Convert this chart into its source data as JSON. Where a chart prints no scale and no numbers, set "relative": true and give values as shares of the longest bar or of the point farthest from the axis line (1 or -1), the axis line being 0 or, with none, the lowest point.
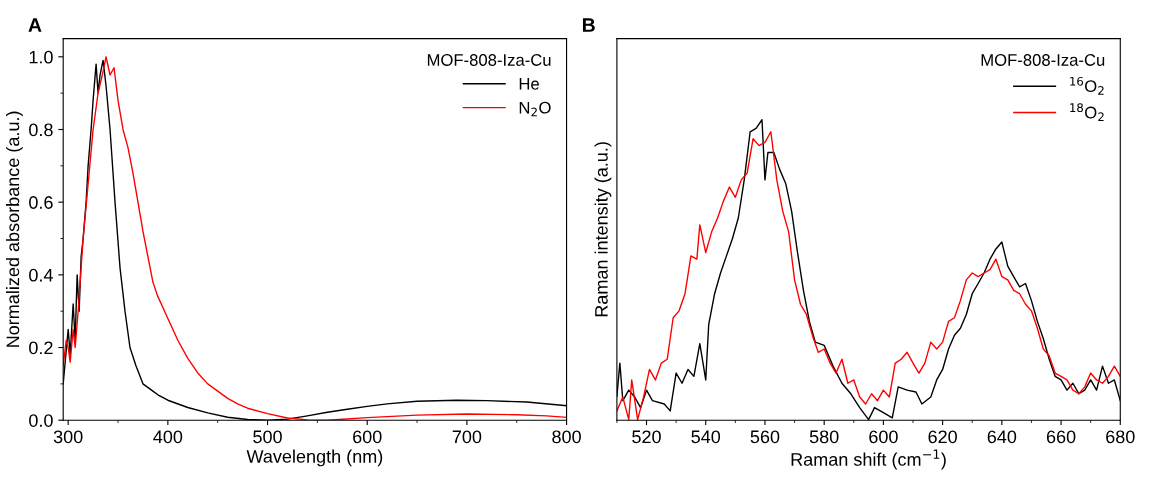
{
  "chart_data": [
    {
      "type": "line",
      "annotations": [
        "A"
      ],
      "xlabel": "Wavelength (nm)",
      "ylabel": "Normalized absorbance (a.u.)",
      "legend_title": "MOF-808-Iza-Cu",
      "legend": "top right",
      "grid": false,
      "xlim": [
        295,
        800
      ],
      "xticks": [
        300,
        400,
        500,
        600,
        700,
        800
      ],
      "ylim": [
        0,
        1.05
      ],
      "yticks": [
        {
          "value": 0,
          "label": "0.0"
        },
        0.2,
        0.4,
        0.6,
        0.8,
        {
          "value": 1,
          "label": "1.0"
        }
      ],
      "series": [
        {
          "name": "He",
          "color": "#000000",
          "x": [
            295,
            300,
            302,
            305,
            307,
            309,
            311,
            313,
            315,
            318,
            320,
            323,
            325,
            328,
            330,
            332,
            335,
            338,
            342,
            347,
            352,
            357,
            362,
            368,
            375,
            385,
            390,
            400,
            420,
            440,
            460,
            480,
            500,
            520,
            540,
            560,
            580,
            600,
            620,
            650,
            690,
            720,
            760,
            800
          ],
          "values": [
            0.1,
            0.25,
            0.18,
            0.32,
            0.22,
            0.4,
            0.3,
            0.45,
            0.5,
            0.6,
            0.7,
            0.8,
            0.88,
            0.98,
            0.9,
            0.95,
            0.99,
            0.92,
            0.8,
            0.6,
            0.42,
            0.3,
            0.2,
            0.15,
            0.1,
            0.08,
            0.07,
            0.055,
            0.035,
            0.02,
            0.008,
            0.002,
            0,
            0.003,
            0.012,
            0.022,
            0.03,
            0.038,
            0.045,
            0.052,
            0.055,
            0.054,
            0.05,
            0.04
          ]
        },
        {
          "name": "N$_{2}$O",
          "color": "#ff0000",
          "x": [
            295,
            298,
            300,
            302,
            305,
            307,
            310,
            315,
            320,
            325,
            330,
            335,
            338,
            342,
            346,
            350,
            355,
            360,
            365,
            370,
            375,
            380,
            385,
            390,
            395,
            400,
            410,
            420,
            430,
            440,
            450,
            460,
            470,
            480,
            500,
            520,
            540,
            560,
            600,
            650,
            700,
            750,
            780,
            800
          ],
          "values": [
            0.15,
            0.22,
            0.2,
            0.16,
            0.25,
            0.2,
            0.3,
            0.5,
            0.65,
            0.8,
            0.9,
            0.96,
            1.0,
            0.95,
            0.97,
            0.88,
            0.8,
            0.75,
            0.68,
            0.6,
            0.52,
            0.45,
            0.38,
            0.34,
            0.31,
            0.28,
            0.22,
            0.17,
            0.13,
            0.1,
            0.08,
            0.06,
            0.045,
            0.033,
            0.018,
            0.006,
            0.001,
            0,
            0.007,
            0.014,
            0.017,
            0.015,
            0.012,
            0.008
          ]
        }
      ]
    },
    {
      "type": "line",
      "annotations": [
        "B"
      ],
      "xlabel": "Raman shift (cm$^{−1}$)",
      "ylabel": "Raman intensity (a.u.)",
      "legend_title": "MOF-808-Iza-Cu",
      "legend": "top right",
      "grid": false,
      "relative": true,
      "xlim": [
        510,
        680
      ],
      "xticks": [
        520,
        540,
        560,
        580,
        600,
        620,
        640,
        660,
        680
      ],
      "series": [
        {
          "name": "$^{16}$O$_{2}$",
          "color": "#000000",
          "x": [
            510,
            511,
            512,
            514,
            516,
            518,
            520,
            522,
            526,
            528,
            530,
            532,
            534,
            536,
            538,
            540,
            541,
            543,
            545,
            547,
            549,
            551,
            553,
            555,
            557,
            559,
            560,
            561,
            563,
            565,
            567,
            569,
            571,
            573,
            575,
            577,
            580,
            583,
            586,
            589,
            592,
            595,
            597,
            600,
            603,
            605,
            608,
            611,
            613,
            616,
            618,
            620,
            622,
            624,
            626,
            628,
            630,
            632,
            634,
            636,
            638,
            640,
            642,
            644,
            646,
            648,
            650,
            652,
            654,
            656,
            658,
            660,
            662,
            664,
            666,
            668,
            670,
            672,
            674,
            676,
            678,
            680
          ],
          "values": [
            0.08,
            0.19,
            0.065,
            0.1,
            0.077,
            0.042,
            0.1,
            0.065,
            0.054,
            0.031,
            0.157,
            0.123,
            0.169,
            0.146,
            0.255,
            0.134,
            0.318,
            0.421,
            0.49,
            0.547,
            0.604,
            0.673,
            0.8,
            0.96,
            0.971,
            1.0,
            0.8,
            0.891,
            0.891,
            0.834,
            0.788,
            0.696,
            0.558,
            0.432,
            0.329,
            0.26,
            0.249,
            0.18,
            0.123,
            0.088,
            0.042,
            0.002,
            0.042,
            0.025,
            0.008,
            0.111,
            0.1,
            0.094,
            0.054,
            0.077,
            0.134,
            0.169,
            0.237,
            0.283,
            0.306,
            0.352,
            0.421,
            0.455,
            0.49,
            0.536,
            0.57,
            0.593,
            0.513,
            0.478,
            0.444,
            0.455,
            0.398,
            0.329,
            0.272,
            0.203,
            0.146,
            0.134,
            0.1,
            0.123,
            0.088,
            0.1,
            0.134,
            0.1,
            0.18,
            0.123,
            0.134,
            0.065
          ]
        },
        {
          "name": "$^{18}$O$_{2}$",
          "color": "#ff0000",
          "x": [
            510,
            512,
            514,
            515,
            517,
            519,
            521,
            523,
            525,
            527,
            529,
            531,
            533,
            535,
            537,
            538,
            540,
            542,
            544,
            546,
            548,
            550,
            552,
            554,
            556,
            558,
            560,
            562,
            564,
            566,
            568,
            570,
            572,
            574,
            576,
            578,
            580,
            582,
            584,
            586,
            588,
            590,
            592,
            594,
            596,
            598,
            600,
            602,
            604,
            606,
            608,
            610,
            612,
            614,
            616,
            618,
            620,
            622,
            624,
            626,
            628,
            630,
            632,
            634,
            636,
            638,
            640,
            642,
            644,
            646,
            648,
            650,
            652,
            654,
            656,
            658,
            660,
            662,
            664,
            666,
            668,
            670,
            672,
            674,
            676,
            678,
            680
          ],
          "values": [
            0.031,
            0.077,
            0.002,
            0.134,
            0.002,
            0.077,
            0.169,
            0.134,
            0.19,
            0.203,
            0.341,
            0.364,
            0.421,
            0.547,
            0.536,
            0.65,
            0.558,
            0.627,
            0.673,
            0.73,
            0.776,
            0.742,
            0.8,
            0.823,
            0.937,
            0.914,
            0.925,
            0.96,
            0.8,
            0.696,
            0.627,
            0.467,
            0.386,
            0.352,
            0.283,
            0.226,
            0.237,
            0.19,
            0.157,
            0.203,
            0.123,
            0.134,
            0.077,
            0.054,
            0.088,
            0.065,
            0.1,
            0.077,
            0.19,
            0.203,
            0.226,
            0.19,
            0.157,
            0.19,
            0.26,
            0.237,
            0.26,
            0.329,
            0.341,
            0.398,
            0.467,
            0.49,
            0.478,
            0.49,
            0.501,
            0.536,
            0.478,
            0.467,
            0.432,
            0.421,
            0.386,
            0.364,
            0.306,
            0.237,
            0.214,
            0.157,
            0.146,
            0.134,
            0.1,
            0.088,
            0.111,
            0.157,
            0.134,
            0.123,
            0.146,
            0.18,
            0.146
          ]
        }
      ]
    }
  ]
}
